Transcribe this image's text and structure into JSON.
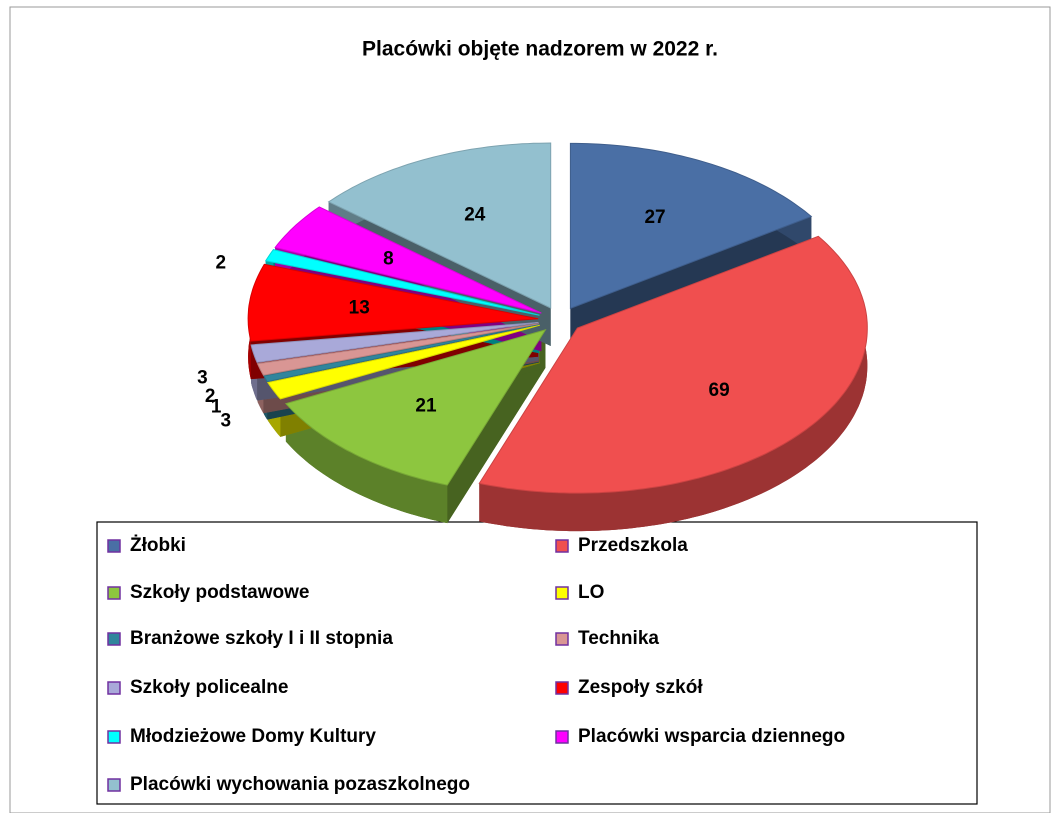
{
  "chart_data": {
    "type": "pie3d",
    "title": "Placówki objęte nadzorem w 2022 r.",
    "categories": [
      "Żłobki",
      "Przedszkola",
      "Szkoły podstawowe",
      "LO",
      "Branżowe szkoły I i II stopnia",
      "Technika",
      "Szkoły policealne",
      "Zespoły szkół",
      "Młodzieżowe Domy Kultury",
      "Placówki wsparcia dziennego",
      "Placówki wychowania pozaszkolnego"
    ],
    "values": [
      27,
      69,
      21,
      3,
      1,
      2,
      3,
      13,
      2,
      8,
      24
    ],
    "colors": [
      "#4a6fa5",
      "#f04f4f",
      "#8dc63f",
      "#ffff00",
      "#31859c",
      "#d99694",
      "#a9a9d9",
      "#ff0000",
      "#00ffff",
      "#ff00ff",
      "#93c0cf"
    ],
    "legend": "bottom"
  }
}
